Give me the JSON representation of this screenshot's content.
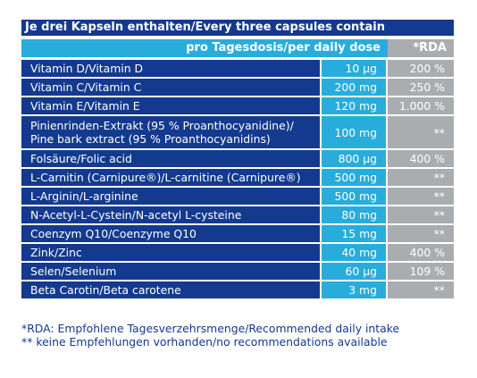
{
  "title": "Je drei Kapseln enthalten/Every three capsules contain",
  "header": {
    "dose": "pro Tagesdosis/per daily dose",
    "rda": "*RDA"
  },
  "rows": [
    {
      "name": "Vitamin D/Vitamin D",
      "amount": "10 µg",
      "rda": "200 %"
    },
    {
      "name": "Vitamin C/Vitamin C",
      "amount": "200 mg",
      "rda": "250 %"
    },
    {
      "name": "Vitamin E/Vitamin E",
      "amount": "120 mg",
      "rda": "1.000 %"
    },
    {
      "name": "Pinienrinden-Extrakt (95 % Proanthocyanidine)/",
      "name2": "Pine bark extract (95 % Proanthocyanidins)",
      "amount": "100 mg",
      "rda": "**"
    },
    {
      "name": "Folsäure/Folic acid",
      "amount": "800 µg",
      "rda": "400 %"
    },
    {
      "name": "L-Carnitin (Carnipure®)/L-carnitine (Carnipure®)",
      "amount": "500 mg",
      "rda": "**"
    },
    {
      "name": "L-Arginin/L-arginine",
      "amount": "500 mg",
      "rda": "**"
    },
    {
      "name": "N-Acetyl-L-Cystein/N-acetyl L-cysteine",
      "amount": "80 mg",
      "rda": "**"
    },
    {
      "name": "Coenzym Q10/Coenzyme Q10",
      "amount": "15 mg",
      "rda": "**"
    },
    {
      "name": "Zink/Zinc",
      "amount": "40 mg",
      "rda": "400 %"
    },
    {
      "name": "Selen/Selenium",
      "amount": "60 µg",
      "rda": "109 %"
    },
    {
      "name": "Beta Carotin/Beta carotene",
      "amount": "3 mg",
      "rda": "**"
    }
  ],
  "footnotes": {
    "rda": "*RDA: Empfohlene Tagesverzehrsmenge/Recommended daily intake",
    "none": "** keine Empfehlungen vorhanden/no recommendations available"
  },
  "colors": {
    "dark_blue": "#133a8e",
    "light_blue": "#28acdb",
    "grey": "#a9adb0"
  }
}
